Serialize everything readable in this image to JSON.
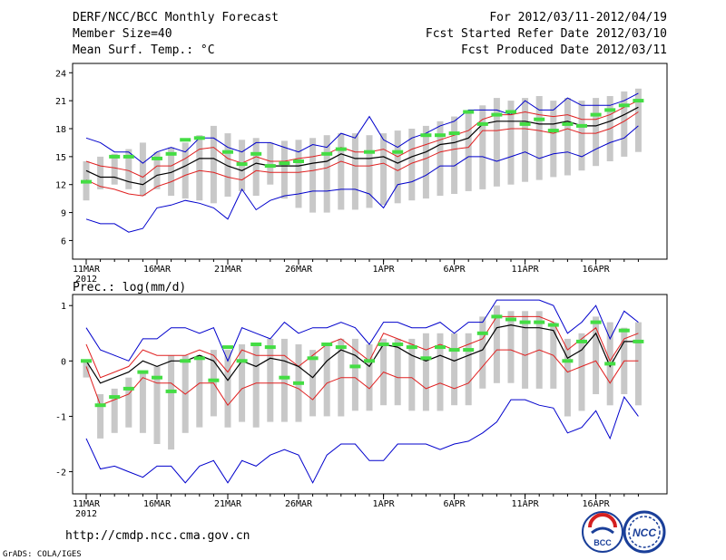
{
  "header": {
    "title": "DERF/NCC/BCC Monthly Forecast",
    "member_size": "Member Size=40",
    "variable": "Mean Surf. Temp.: °C",
    "period": "For 2012/03/11-2012/04/19",
    "start_date": "Fcst Started Refer Date 2012/03/10",
    "produced_date": "Fcst Produced Date 2012/03/11"
  },
  "footer": {
    "url": "http://cmdp.ncc.cma.gov.cn",
    "grads": "GrADS: COLA/IGES",
    "logo_left_text": "BCC",
    "logo_right_text": "NCC"
  },
  "colors": {
    "box": "#c8c8c8",
    "mean": "#000000",
    "spread": "#e02020",
    "envelope": "#0000cc",
    "obs": "#44dd44"
  },
  "chart_data": [
    {
      "type": "line",
      "title": "Mean Surf. Temp.: °C",
      "xlabel": "",
      "ylabel": "°C",
      "ylim": [
        4,
        25
      ],
      "yticks": [
        6,
        9,
        12,
        15,
        18,
        21,
        24
      ],
      "x_tick_labels": [
        "11MAR",
        "16MAR",
        "21MAR",
        "26MAR",
        "1APR",
        "6APR",
        "11APR",
        "16APR"
      ],
      "x_tick_days": [
        1,
        6,
        11,
        16,
        22,
        27,
        32,
        37
      ],
      "x_year_label": "2012",
      "ndays": 40,
      "box_low": [
        10.3,
        11.5,
        12.0,
        11.5,
        10.8,
        11.5,
        10.8,
        10.5,
        10.3,
        10.0,
        10.7,
        11.3,
        10.8,
        12.0,
        10.5,
        9.5,
        9.0,
        9.0,
        9.3,
        9.3,
        9.5,
        9.8,
        10.0,
        10.3,
        10.5,
        10.8,
        11.0,
        11.3,
        11.5,
        11.8,
        12.0,
        12.3,
        12.5,
        12.8,
        13.0,
        13.5,
        14.0,
        14.5,
        15.0,
        15.5
      ],
      "box_high": [
        14.5,
        15.0,
        15.3,
        15.8,
        16.5,
        15.5,
        16.0,
        16.5,
        17.3,
        18.3,
        17.5,
        16.8,
        17.0,
        16.5,
        16.7,
        16.8,
        17.0,
        17.3,
        17.5,
        17.5,
        17.3,
        17.5,
        17.8,
        18.0,
        18.3,
        18.8,
        19.3,
        19.8,
        20.5,
        21.3,
        21.0,
        21.3,
        21.5,
        21.0,
        21.3,
        21.0,
        21.3,
        21.5,
        22.0,
        22.3
      ],
      "series": [
        {
          "name": "Envelope max",
          "values": [
            17.0,
            16.5,
            15.5,
            15.5,
            14.3,
            15.5,
            16.0,
            15.5,
            17.0,
            17.0,
            16.0,
            15.5,
            16.5,
            16.5,
            16.0,
            15.5,
            16.3,
            16.0,
            17.5,
            17.0,
            19.3,
            16.8,
            16.0,
            17.0,
            17.5,
            18.3,
            18.8,
            20.0,
            20.0,
            20.0,
            19.5,
            21.0,
            20.0,
            20.0,
            21.3,
            20.5,
            20.5,
            20.5,
            21.0,
            21.8
          ]
        },
        {
          "name": "Spread high",
          "values": [
            14.5,
            14.0,
            13.8,
            13.5,
            12.8,
            14.0,
            14.0,
            14.8,
            15.8,
            16.0,
            14.8,
            14.3,
            15.0,
            14.5,
            14.5,
            14.8,
            15.0,
            15.3,
            16.0,
            15.5,
            15.5,
            15.8,
            15.0,
            15.8,
            16.3,
            16.8,
            17.3,
            17.8,
            19.0,
            19.5,
            19.5,
            19.8,
            19.5,
            19.3,
            19.5,
            19.0,
            19.0,
            19.5,
            20.3,
            21.0
          ]
        },
        {
          "name": "Ensemble mean",
          "values": [
            13.5,
            12.8,
            12.8,
            12.3,
            12.0,
            13.0,
            13.3,
            14.0,
            14.8,
            14.8,
            14.0,
            13.5,
            14.3,
            14.0,
            14.0,
            14.0,
            14.3,
            14.5,
            15.3,
            14.8,
            14.8,
            15.0,
            14.3,
            15.0,
            15.5,
            16.3,
            16.5,
            17.0,
            18.5,
            18.8,
            18.8,
            18.8,
            18.5,
            18.5,
            18.8,
            18.3,
            18.3,
            18.8,
            19.5,
            20.3
          ]
        },
        {
          "name": "Spread low",
          "values": [
            12.5,
            11.8,
            11.5,
            11.0,
            10.8,
            11.8,
            12.3,
            13.0,
            13.5,
            13.3,
            12.8,
            12.5,
            13.5,
            13.3,
            13.3,
            13.3,
            13.5,
            13.8,
            14.5,
            14.0,
            14.0,
            14.3,
            13.5,
            14.3,
            14.8,
            15.5,
            15.8,
            16.0,
            17.8,
            17.8,
            18.0,
            18.0,
            17.8,
            17.5,
            18.0,
            17.5,
            17.5,
            18.0,
            18.8,
            19.8
          ]
        },
        {
          "name": "Envelope min",
          "values": [
            8.3,
            7.8,
            7.8,
            6.9,
            7.3,
            9.5,
            9.8,
            10.3,
            10.0,
            9.5,
            8.3,
            11.5,
            9.3,
            10.3,
            10.8,
            11.0,
            11.3,
            11.3,
            11.5,
            11.5,
            11.0,
            9.5,
            12.0,
            12.3,
            13.0,
            14.0,
            14.0,
            15.0,
            15.0,
            14.5,
            15.0,
            15.5,
            14.8,
            15.3,
            15.5,
            15.0,
            15.8,
            16.5,
            17.0,
            18.3
          ]
        },
        {
          "name": "Observed",
          "values": [
            12.3,
            null,
            15.0,
            15.0,
            null,
            14.8,
            15.3,
            16.8,
            17.0,
            null,
            15.5,
            14.2,
            15.3,
            14.0,
            14.3,
            14.5,
            null,
            15.3,
            15.8,
            null,
            15.5,
            null,
            15.5,
            null,
            17.3,
            17.3,
            17.5,
            19.8,
            18.5,
            19.5,
            19.8,
            18.5,
            19.0,
            17.8,
            18.5,
            18.3,
            19.5,
            20.0,
            20.5,
            21.0
          ]
        }
      ]
    },
    {
      "type": "line",
      "title": "Prec.: log(mm/d)",
      "xlabel": "",
      "ylabel": "log(mm/d)",
      "ylim": [
        -2.4,
        1.2
      ],
      "yticks": [
        -2,
        -1,
        0,
        1
      ],
      "x_tick_labels": [
        "11MAR",
        "16MAR",
        "21MAR",
        "26MAR",
        "1APR",
        "6APR",
        "11APR",
        "16APR"
      ],
      "x_tick_days": [
        1,
        6,
        11,
        16,
        22,
        27,
        32,
        37
      ],
      "x_year_label": "2012",
      "ndays": 40,
      "box_low": [
        -0.3,
        -1.4,
        -1.3,
        -1.2,
        -1.3,
        -1.5,
        -1.6,
        -1.3,
        -1.2,
        -1.0,
        -1.2,
        -1.1,
        -1.2,
        -1.1,
        -1.1,
        -1.1,
        -1.0,
        -1.0,
        -1.0,
        -0.9,
        -0.9,
        -0.8,
        -0.8,
        -0.9,
        -0.9,
        -0.9,
        -0.8,
        -0.8,
        -0.5,
        -0.4,
        -0.4,
        -0.5,
        -0.5,
        -0.5,
        -1.0,
        -0.9,
        -0.6,
        -0.8,
        -0.6,
        -0.8
      ],
      "box_high": [
        0.0,
        -0.6,
        -0.5,
        -0.3,
        -0.2,
        -0.1,
        0.1,
        0.1,
        0.1,
        0.2,
        0.2,
        0.3,
        0.3,
        0.4,
        0.4,
        0.3,
        0.2,
        0.3,
        0.4,
        0.4,
        0.3,
        0.4,
        0.4,
        0.4,
        0.5,
        0.5,
        0.5,
        0.5,
        0.8,
        1.0,
        0.9,
        0.9,
        0.9,
        0.7,
        0.4,
        0.5,
        0.8,
        0.7,
        0.6,
        0.7
      ],
      "series": [
        {
          "name": "Envelope max",
          "values": [
            0.6,
            0.2,
            0.1,
            0.0,
            0.4,
            0.4,
            0.6,
            0.6,
            0.5,
            0.6,
            0.0,
            0.6,
            0.5,
            0.4,
            0.7,
            0.5,
            0.6,
            0.6,
            0.7,
            0.6,
            0.3,
            0.7,
            0.7,
            0.6,
            0.6,
            0.7,
            0.5,
            0.7,
            0.7,
            1.1,
            1.1,
            1.1,
            1.1,
            1.0,
            0.5,
            0.7,
            1.0,
            0.4,
            0.9,
            0.7
          ]
        },
        {
          "name": "Spread high",
          "values": [
            0.3,
            -0.3,
            -0.2,
            -0.1,
            0.2,
            0.1,
            0.1,
            0.1,
            0.2,
            0.1,
            -0.2,
            0.2,
            0.1,
            0.1,
            0.1,
            -0.1,
            0.1,
            0.3,
            0.4,
            0.2,
            0.0,
            0.5,
            0.4,
            0.3,
            0.2,
            0.3,
            0.2,
            0.3,
            0.4,
            0.8,
            0.8,
            0.8,
            0.8,
            0.7,
            0.2,
            0.4,
            0.6,
            0.0,
            0.4,
            0.5
          ]
        },
        {
          "name": "Ensemble mean",
          "values": [
            0.0,
            -0.4,
            -0.3,
            -0.2,
            0.0,
            -0.1,
            0.0,
            0.0,
            0.1,
            0.0,
            -0.35,
            0.0,
            -0.1,
            0.05,
            0.0,
            -0.1,
            -0.3,
            0.0,
            0.2,
            0.1,
            -0.1,
            0.3,
            0.25,
            0.1,
            0.0,
            0.1,
            0.0,
            0.1,
            0.2,
            0.6,
            0.65,
            0.6,
            0.6,
            0.55,
            0.05,
            0.2,
            0.5,
            -0.1,
            0.35,
            0.35
          ]
        },
        {
          "name": "Spread low",
          "values": [
            -0.1,
            -0.8,
            -0.7,
            -0.6,
            -0.3,
            -0.4,
            -0.4,
            -0.6,
            -0.4,
            -0.4,
            -0.8,
            -0.5,
            -0.4,
            -0.4,
            -0.4,
            -0.5,
            -0.7,
            -0.4,
            -0.3,
            -0.3,
            -0.5,
            -0.2,
            -0.3,
            -0.3,
            -0.5,
            -0.4,
            -0.5,
            -0.4,
            -0.1,
            0.2,
            0.2,
            0.1,
            0.2,
            0.1,
            -0.2,
            -0.1,
            0.0,
            -0.4,
            0.0,
            0.0
          ]
        },
        {
          "name": "Envelope min",
          "values": [
            -1.4,
            -1.95,
            -1.9,
            -2.0,
            -2.1,
            -1.9,
            -1.9,
            -2.2,
            -1.9,
            -1.8,
            -2.2,
            -1.8,
            -1.9,
            -1.7,
            -1.6,
            -1.7,
            -2.2,
            -1.7,
            -1.5,
            -1.5,
            -1.8,
            -1.8,
            -1.5,
            -1.5,
            -1.5,
            -1.6,
            -1.5,
            -1.45,
            -1.3,
            -1.1,
            -0.7,
            -0.7,
            -0.8,
            -0.85,
            -1.3,
            -1.2,
            -0.9,
            -1.4,
            -0.65,
            -1.0
          ]
        },
        {
          "name": "Observed",
          "values": [
            0.0,
            -0.8,
            -0.65,
            -0.5,
            -0.2,
            -0.3,
            -0.55,
            0.0,
            0.05,
            -0.35,
            0.25,
            0.0,
            0.3,
            0.25,
            -0.3,
            -0.4,
            0.05,
            0.3,
            0.25,
            -0.1,
            0.0,
            0.3,
            0.3,
            0.25,
            0.05,
            0.25,
            0.2,
            0.2,
            0.5,
            0.8,
            0.75,
            0.7,
            0.7,
            0.65,
            0.0,
            0.35,
            0.7,
            -0.05,
            0.55,
            0.35
          ]
        }
      ]
    }
  ]
}
